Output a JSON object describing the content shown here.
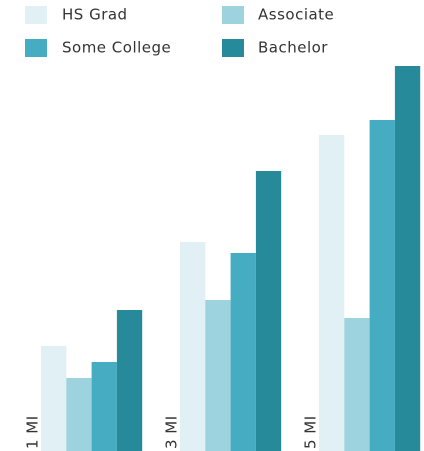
{
  "chart_data": {
    "type": "bar",
    "categories": [
      "1 MI",
      "3 MI",
      "5 MI"
    ],
    "series": [
      {
        "name": "HS Grad",
        "color": "#e0f0f5",
        "values": [
          105,
          209,
          316
        ]
      },
      {
        "name": "Associate",
        "color": "#9dd3df",
        "values": [
          73,
          151,
          133
        ]
      },
      {
        "name": "Some College",
        "color": "#45acc2",
        "values": [
          89,
          198,
          331
        ]
      },
      {
        "name": "Bachelor",
        "color": "#268a9b",
        "values": [
          141,
          280,
          385
        ]
      }
    ],
    "ylim": [
      0,
      400
    ]
  }
}
